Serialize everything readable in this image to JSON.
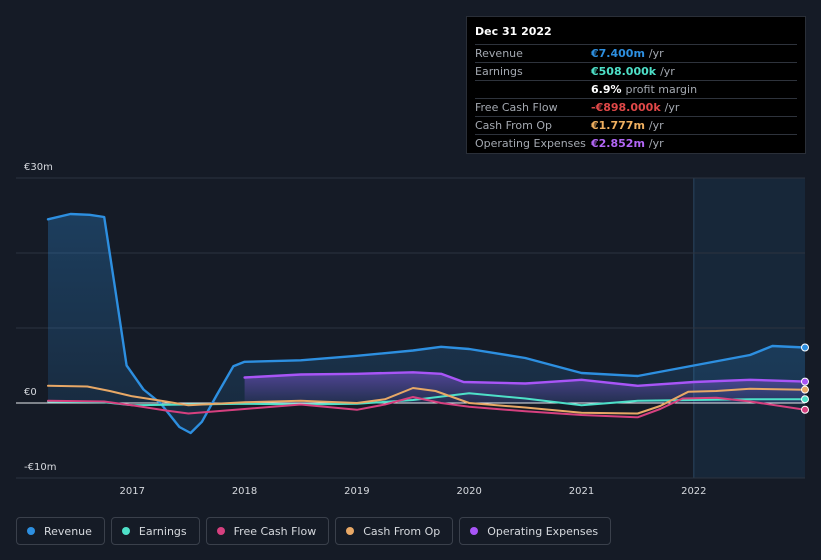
{
  "chart_data": {
    "type": "line",
    "x_range": [
      2016.25,
      2022.99
    ],
    "ylim": [
      -10,
      30
    ],
    "y_tick_labels": [
      "€30m",
      "€0",
      "-€10m"
    ],
    "x_ticks": [
      2017,
      2018,
      2019,
      2020,
      2021,
      2022
    ],
    "x_tick_labels": [
      "2017",
      "2018",
      "2019",
      "2020",
      "2021",
      "2022"
    ],
    "highlight_start": 2022.0,
    "series": [
      {
        "key": "opex",
        "name": "Operating Expenses",
        "color": "#a855f7",
        "fill": true,
        "points": [
          [
            2018.0,
            3.4
          ],
          [
            2018.5,
            3.8
          ],
          [
            2019.0,
            3.9
          ],
          [
            2019.5,
            4.1
          ],
          [
            2019.75,
            3.9
          ],
          [
            2019.95,
            2.8
          ],
          [
            2020.5,
            2.6
          ],
          [
            2021.0,
            3.1
          ],
          [
            2021.5,
            2.3
          ],
          [
            2022.0,
            2.8
          ],
          [
            2022.5,
            3.1
          ],
          [
            2022.99,
            2.85
          ]
        ]
      },
      {
        "key": "revenue",
        "name": "Revenue",
        "color": "#2d8fe0",
        "fill": true,
        "points": [
          [
            2016.25,
            24.5
          ],
          [
            2016.45,
            25.2
          ],
          [
            2016.62,
            25.1
          ],
          [
            2016.75,
            24.8
          ],
          [
            2016.85,
            15.0
          ],
          [
            2016.95,
            5.0
          ],
          [
            2017.1,
            1.8
          ],
          [
            2017.25,
            0.0
          ],
          [
            2017.42,
            -3.2
          ],
          [
            2017.52,
            -4.0
          ],
          [
            2017.62,
            -2.5
          ],
          [
            2017.75,
            1.0
          ],
          [
            2017.9,
            4.9
          ],
          [
            2018.0,
            5.5
          ],
          [
            2018.5,
            5.7
          ],
          [
            2019.0,
            6.3
          ],
          [
            2019.5,
            7.0
          ],
          [
            2019.75,
            7.5
          ],
          [
            2020.0,
            7.2
          ],
          [
            2020.5,
            6.0
          ],
          [
            2021.0,
            4.0
          ],
          [
            2021.5,
            3.6
          ],
          [
            2022.0,
            5.0
          ],
          [
            2022.5,
            6.4
          ],
          [
            2022.7,
            7.6
          ],
          [
            2022.99,
            7.4
          ]
        ]
      },
      {
        "key": "earnings",
        "name": "Earnings",
        "color": "#4ee0c8",
        "fill": false,
        "points": [
          [
            2016.25,
            0.2
          ],
          [
            2016.75,
            0.1
          ],
          [
            2017.0,
            -0.3
          ],
          [
            2017.5,
            -0.2
          ],
          [
            2018.0,
            -0.1
          ],
          [
            2018.5,
            -0.2
          ],
          [
            2019.0,
            -0.1
          ],
          [
            2019.5,
            0.4
          ],
          [
            2020.0,
            1.3
          ],
          [
            2020.5,
            0.6
          ],
          [
            2021.0,
            -0.3
          ],
          [
            2021.5,
            0.3
          ],
          [
            2022.0,
            0.4
          ],
          [
            2022.5,
            0.5
          ],
          [
            2022.99,
            0.508
          ]
        ]
      },
      {
        "key": "fcf",
        "name": "Free Cash Flow",
        "color": "#d6407f",
        "fill": false,
        "points": [
          [
            2016.25,
            0.3
          ],
          [
            2016.75,
            0.2
          ],
          [
            2017.0,
            -0.3
          ],
          [
            2017.3,
            -1.0
          ],
          [
            2017.5,
            -1.4
          ],
          [
            2018.0,
            -0.8
          ],
          [
            2018.5,
            -0.2
          ],
          [
            2019.0,
            -0.9
          ],
          [
            2019.25,
            -0.2
          ],
          [
            2019.5,
            0.8
          ],
          [
            2019.75,
            0.0
          ],
          [
            2020.0,
            -0.5
          ],
          [
            2020.5,
            -1.1
          ],
          [
            2021.0,
            -1.6
          ],
          [
            2021.5,
            -1.9
          ],
          [
            2021.7,
            -0.8
          ],
          [
            2021.9,
            0.6
          ],
          [
            2022.2,
            0.7
          ],
          [
            2022.5,
            0.2
          ],
          [
            2022.99,
            -0.898
          ]
        ]
      },
      {
        "key": "cfo",
        "name": "Cash From Op",
        "color": "#e8a866",
        "fill": false,
        "points": [
          [
            2016.25,
            2.3
          ],
          [
            2016.6,
            2.2
          ],
          [
            2016.8,
            1.6
          ],
          [
            2017.0,
            0.9
          ],
          [
            2017.3,
            0.2
          ],
          [
            2017.5,
            -0.3
          ],
          [
            2018.0,
            0.1
          ],
          [
            2018.5,
            0.3
          ],
          [
            2019.0,
            0.0
          ],
          [
            2019.25,
            0.5
          ],
          [
            2019.5,
            2.0
          ],
          [
            2019.7,
            1.6
          ],
          [
            2020.0,
            0.0
          ],
          [
            2020.5,
            -0.6
          ],
          [
            2021.0,
            -1.3
          ],
          [
            2021.5,
            -1.4
          ],
          [
            2021.7,
            -0.4
          ],
          [
            2021.95,
            1.5
          ],
          [
            2022.2,
            1.6
          ],
          [
            2022.5,
            1.9
          ],
          [
            2022.99,
            1.777
          ]
        ]
      }
    ]
  },
  "tooltip": {
    "date": "Dec 31 2022",
    "rows": [
      {
        "label": "Revenue",
        "value": "€7.400m",
        "unit": "/yr",
        "color": "#2d8fe0"
      },
      {
        "label": "Earnings",
        "value": "€508.000k",
        "unit": "/yr",
        "color": "#4ee0c8"
      },
      {
        "label": "",
        "value": "6.9%",
        "unit": "profit margin",
        "color": "#ffffff"
      },
      {
        "label": "Free Cash Flow",
        "value": "-€898.000k",
        "unit": "/yr",
        "color": "#e04848"
      },
      {
        "label": "Cash From Op",
        "value": "€1.777m",
        "unit": "/yr",
        "color": "#f0b060"
      },
      {
        "label": "Operating Expenses",
        "value": "€2.852m",
        "unit": "/yr",
        "color": "#b266f5"
      }
    ]
  },
  "legend": [
    {
      "label": "Revenue",
      "color": "#2d8fe0"
    },
    {
      "label": "Earnings",
      "color": "#4ee0c8"
    },
    {
      "label": "Free Cash Flow",
      "color": "#d6407f"
    },
    {
      "label": "Cash From Op",
      "color": "#e8a866"
    },
    {
      "label": "Operating Expenses",
      "color": "#a855f7"
    }
  ]
}
